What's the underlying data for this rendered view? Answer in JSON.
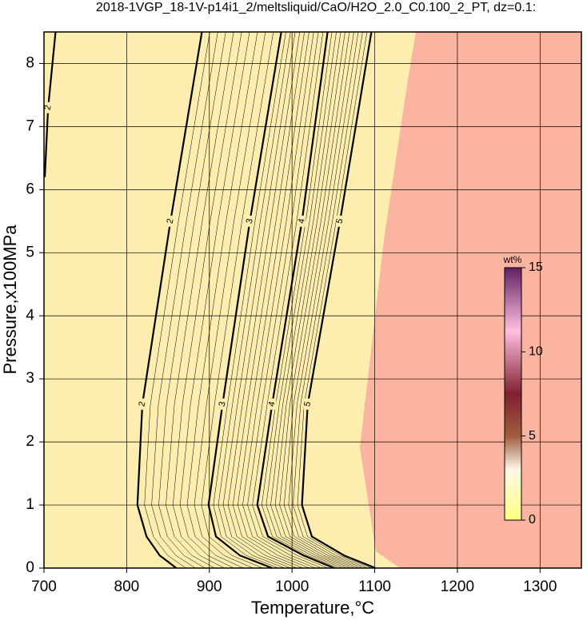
{
  "chart_data": {
    "type": "contour",
    "title": "2018-1VGP_18-1V-p14i1_2/meltsliquid/CaO/H2O_2.0_C0.100_2_PT, dz=0.1:",
    "x_label": "Temperature,°C",
    "y_label": "Pressure,x100MPa",
    "xlim": [
      700,
      1350
    ],
    "ylim": [
      0,
      8.5
    ],
    "xticks": [
      700,
      800,
      900,
      1000,
      1100,
      1200,
      1300
    ],
    "yticks": [
      0,
      1,
      2,
      3,
      4,
      5,
      6,
      7,
      8
    ],
    "grid": true,
    "series": [
      {
        "name": "2",
        "color": "#000000",
        "x": [
          860,
          840,
          824,
          813,
          819,
          853,
          891
        ],
        "y": [
          0,
          0.2,
          0.5,
          1,
          2.6,
          5.5,
          8.5
        ]
      },
      {
        "name": "3",
        "color": "#000000",
        "x": [
          976,
          937,
          908,
          899,
          916,
          949,
          987
        ],
        "y": [
          0,
          0.2,
          0.5,
          1,
          2.6,
          5.5,
          8.5
        ]
      },
      {
        "name": "4",
        "color": "#000000",
        "x": [
          1051,
          1014,
          971,
          958,
          976,
          1012,
          1043
        ],
        "y": [
          0,
          0.2,
          0.5,
          1,
          2.6,
          5.5,
          8.5
        ]
      },
      {
        "name": "5",
        "color": "#000000",
        "x": [
          1101,
          1063,
          1024,
          1012,
          1019,
          1058,
          1096
        ],
        "y": [
          0,
          0.2,
          0.5,
          1,
          2.6,
          5.5,
          8.5
        ]
      },
      {
        "name": "2",
        "color": "#000000",
        "x": [
          701,
          705,
          714
        ],
        "y": [
          6.2,
          7.3,
          8.5
        ]
      }
    ],
    "colorbar": {
      "label": "wt%",
      "lim": [
        0,
        15
      ],
      "ticks": [
        0,
        5,
        10,
        15
      ]
    }
  }
}
